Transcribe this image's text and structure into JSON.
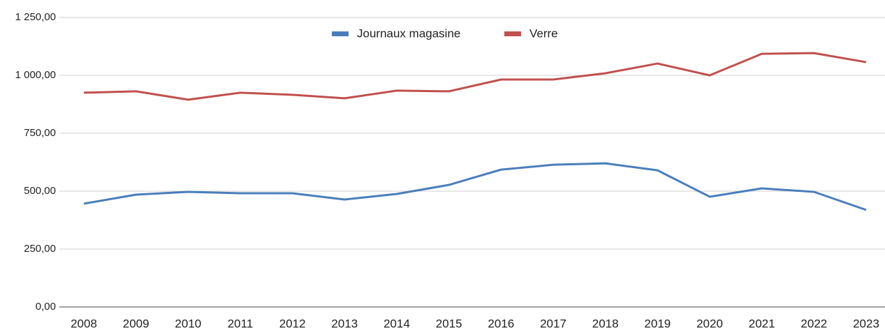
{
  "chart_data": {
    "type": "line",
    "categories": [
      "2008",
      "2009",
      "2010",
      "2011",
      "2012",
      "2013",
      "2014",
      "2015",
      "2016",
      "2017",
      "2018",
      "2019",
      "2020",
      "2021",
      "2022",
      "2023"
    ],
    "series": [
      {
        "name": "Journaux magasine",
        "color": "#4a7ebb",
        "values": [
          446,
          485,
          497,
          491,
          491,
          464,
          488,
          527,
          593,
          614,
          620,
          590,
          476,
          512,
          497,
          419
        ]
      },
      {
        "name": "Verre",
        "color": "#c0504d",
        "values": [
          925,
          931,
          895,
          925,
          916,
          901,
          934,
          931,
          982,
          982,
          1009,
          1051,
          1000,
          1093,
          1096,
          1057
        ]
      }
    ],
    "ylim": [
      0,
      1250
    ],
    "yticks": [
      {
        "value": 0,
        "label": "0,00"
      },
      {
        "value": 250,
        "label": "250,00"
      },
      {
        "value": 500,
        "label": "500,00"
      },
      {
        "value": 750,
        "label": "750,00"
      },
      {
        "value": 1000,
        "label": "1 000,00"
      },
      {
        "value": 1250,
        "label": "1 250,00"
      }
    ],
    "grid": true,
    "legend": "top"
  }
}
